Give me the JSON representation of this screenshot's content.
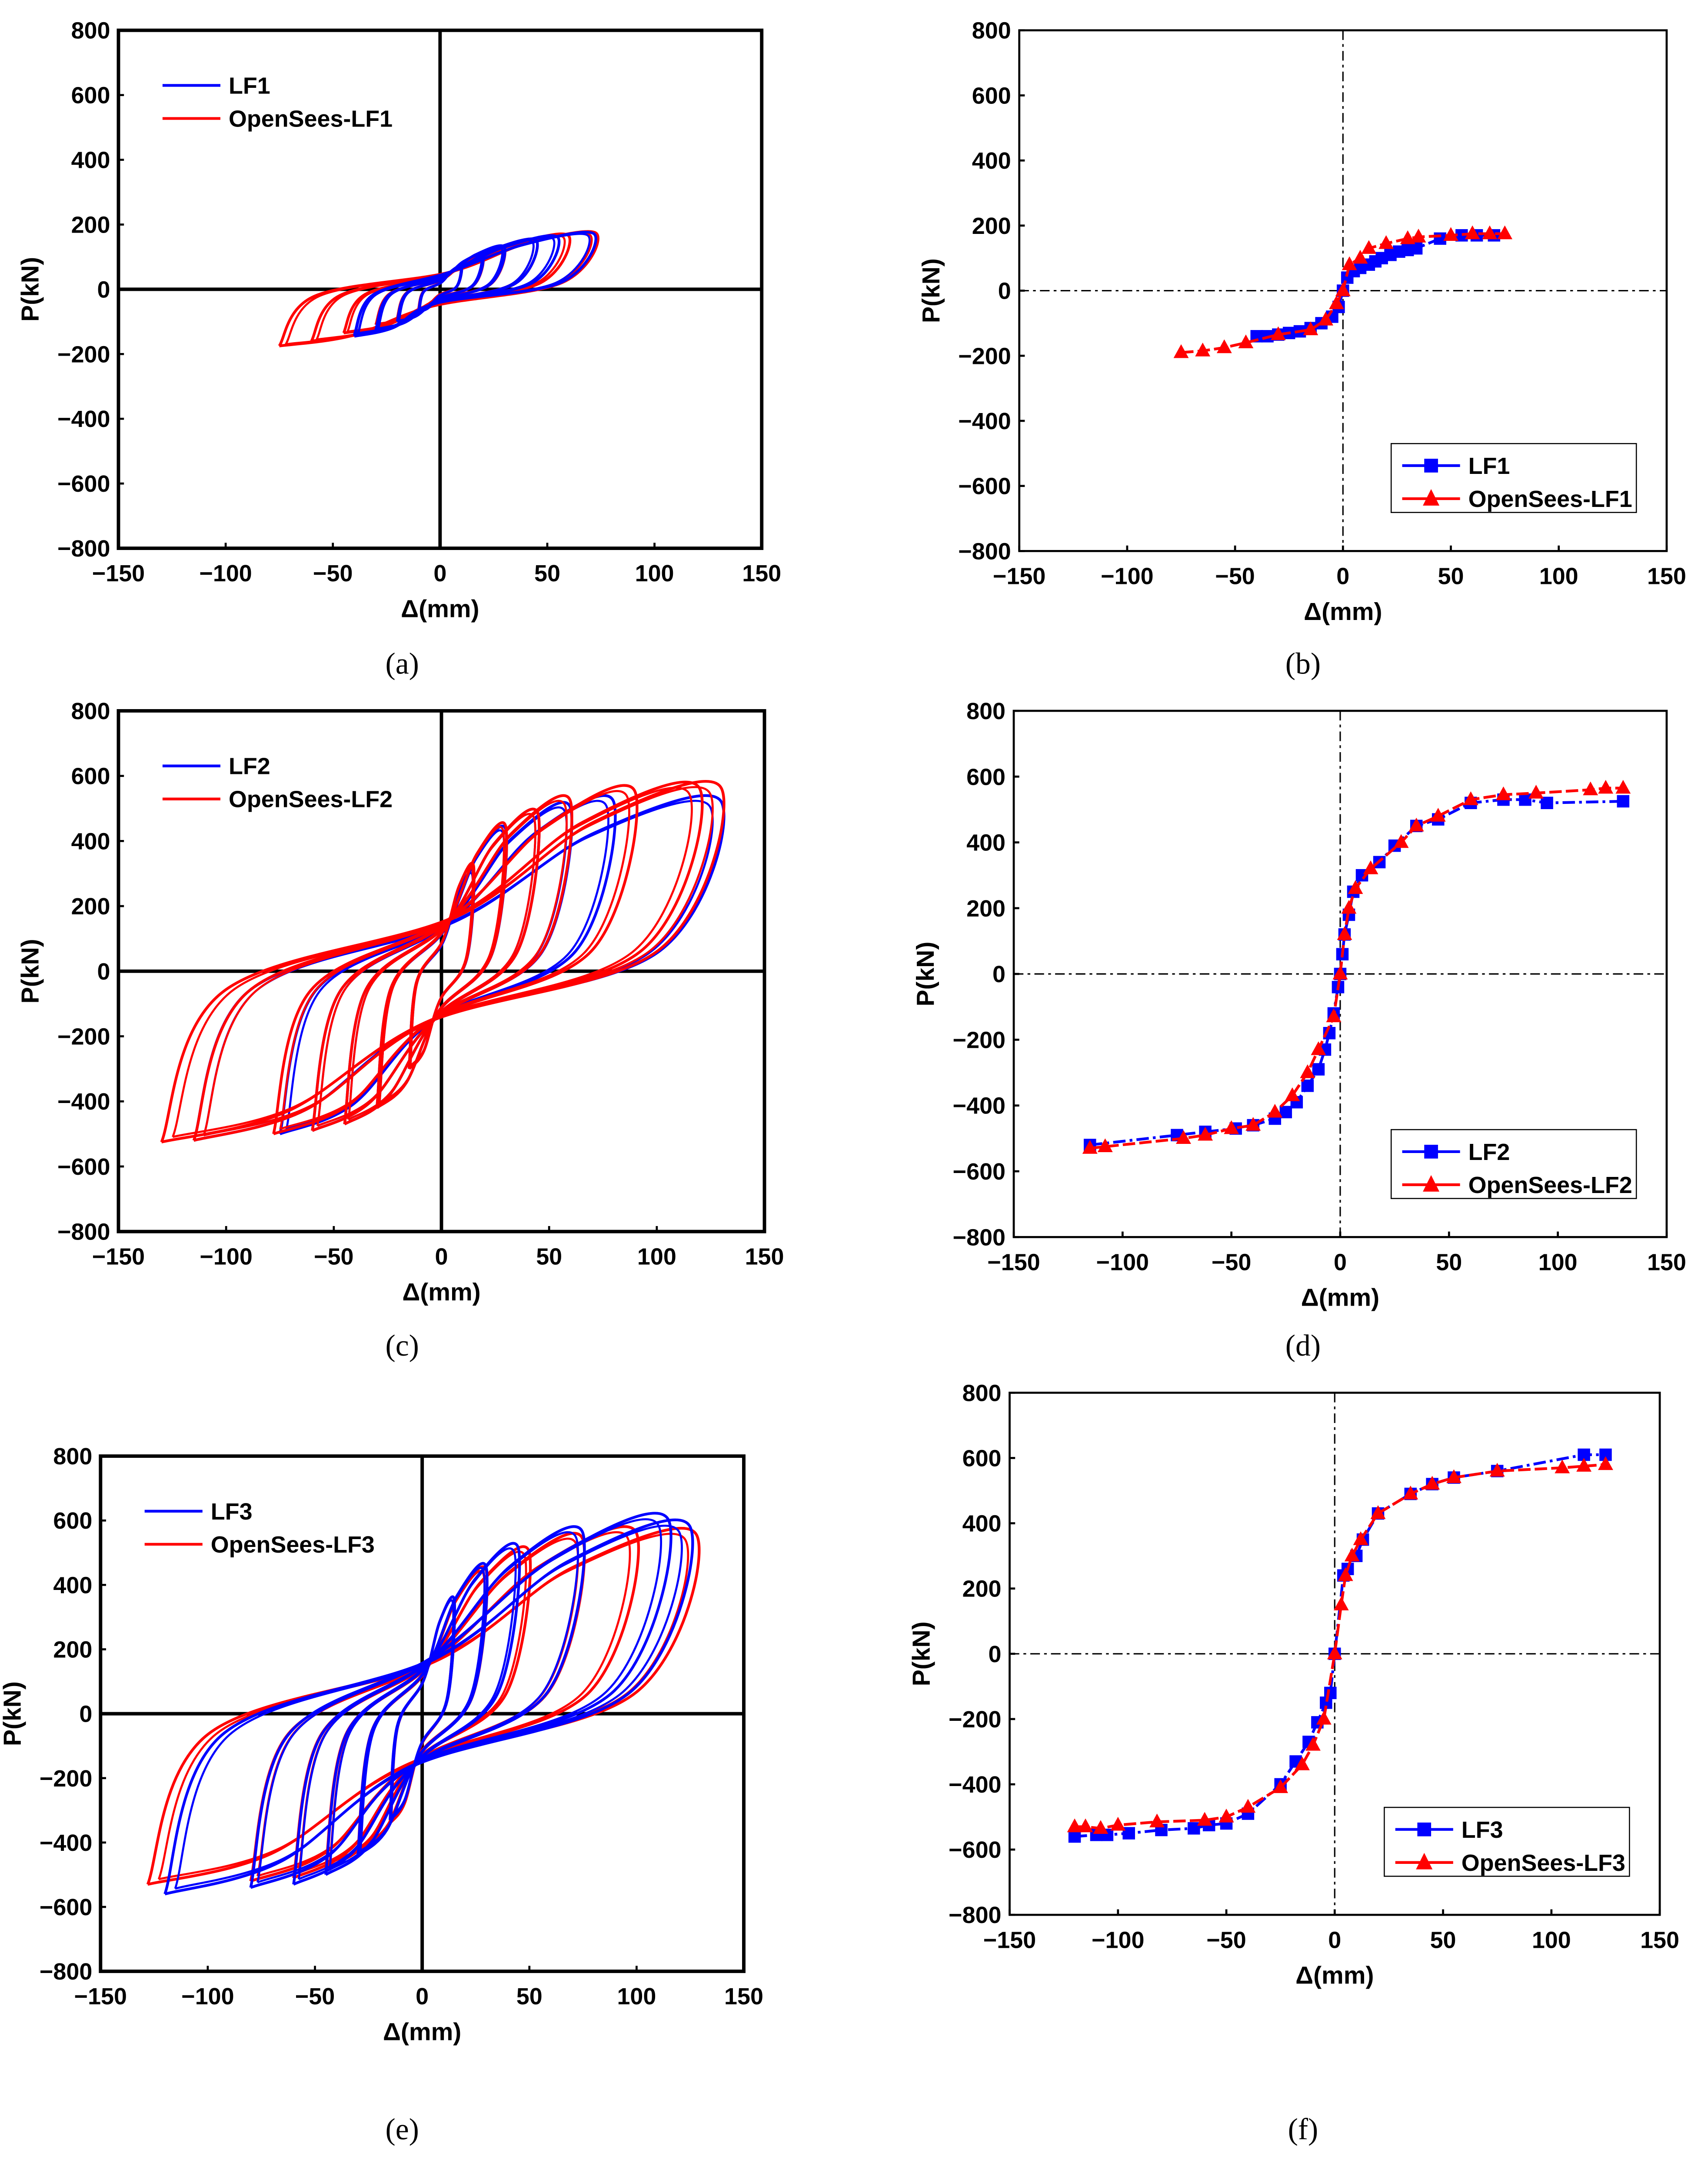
{
  "chart_data": [
    {
      "type": "line",
      "subtype": "hysteresis",
      "caption": "(a)",
      "xlabel": "Δ(mm)",
      "ylabel": "P(kN)",
      "xlim": [
        -150,
        150
      ],
      "ylim": [
        -800,
        800
      ],
      "xticks": [
        "−150",
        "−100",
        "−50",
        "0",
        "50",
        "100",
        "150"
      ],
      "yticks": [
        "800",
        "600",
        "400",
        "200",
        "0",
        "−200",
        "−400",
        "−600",
        "−800"
      ],
      "legend_position": "top-left",
      "axes_style": "solid",
      "series": [
        {
          "name": "OpenSees-LF1",
          "color": "#ff0000",
          "cycles": [
            [
              -10,
              -60,
              10,
              70
            ],
            [
              -20,
              -90,
              20,
              100
            ],
            [
              -30,
              -110,
              30,
              125
            ],
            [
              -45,
              -135,
              45,
              150
            ],
            [
              -60,
              -160,
              60,
              165
            ],
            [
              -75,
              -175,
              73,
              172
            ]
          ]
        },
        {
          "name": "LF1",
          "color": "#0000ff",
          "cycles": [
            [
              -10,
              -70,
              10,
              70
            ],
            [
              -20,
              -100,
              20,
              105
            ],
            [
              -30,
              -125,
              30,
              130
            ],
            [
              -40,
              -140,
              45,
              150
            ],
            [
              -40,
              -145,
              55,
              160
            ],
            [
              -40,
              -145,
              72,
              170
            ]
          ]
        }
      ]
    },
    {
      "type": "line",
      "subtype": "skeleton",
      "caption": "(b)",
      "xlabel": "Δ(mm)",
      "ylabel": "P(kN)",
      "xlim": [
        -150,
        150
      ],
      "ylim": [
        -800,
        800
      ],
      "xticks": [
        "−150",
        "−100",
        "−50",
        "0",
        "50",
        "100",
        "150"
      ],
      "yticks": [
        "800",
        "600",
        "400",
        "200",
        "0",
        "−200",
        "−400",
        "−600",
        "−800"
      ],
      "legend_position": "bottom-right",
      "axes_style": "dashdot",
      "series": [
        {
          "name": "LF1",
          "color": "#0000ff",
          "marker": "square",
          "points": [
            [
              -40,
              -140
            ],
            [
              -35,
              -140
            ],
            [
              -30,
              -135
            ],
            [
              -25,
              -130
            ],
            [
              -20,
              -125
            ],
            [
              -15,
              -115
            ],
            [
              -10,
              -100
            ],
            [
              -5,
              -80
            ],
            [
              -2,
              -50
            ],
            [
              0,
              0
            ],
            [
              2,
              40
            ],
            [
              5,
              60
            ],
            [
              8,
              70
            ],
            [
              12,
              80
            ],
            [
              15,
              90
            ],
            [
              18,
              100
            ],
            [
              22,
              110
            ],
            [
              26,
              120
            ],
            [
              30,
              125
            ],
            [
              34,
              130
            ],
            [
              45,
              160
            ],
            [
              55,
              170
            ],
            [
              62,
              170
            ],
            [
              70,
              170
            ]
          ]
        },
        {
          "name": "OpenSees-LF1",
          "color": "#ff0000",
          "marker": "triangle",
          "points": [
            [
              -75,
              -190
            ],
            [
              -65,
              -185
            ],
            [
              -55,
              -175
            ],
            [
              -45,
              -160
            ],
            [
              -30,
              -135
            ],
            [
              -15,
              -120
            ],
            [
              -8,
              -90
            ],
            [
              -3,
              -40
            ],
            [
              0,
              0
            ],
            [
              3,
              80
            ],
            [
              8,
              100
            ],
            [
              12,
              130
            ],
            [
              20,
              145
            ],
            [
              30,
              160
            ],
            [
              35,
              165
            ],
            [
              50,
              170
            ],
            [
              60,
              175
            ],
            [
              68,
              175
            ],
            [
              75,
              175
            ]
          ]
        }
      ]
    },
    {
      "type": "line",
      "subtype": "hysteresis",
      "caption": "(c)",
      "xlabel": "Δ(mm)",
      "ylabel": "P(kN)",
      "xlim": [
        -150,
        150
      ],
      "ylim": [
        -800,
        800
      ],
      "xticks": [
        "−150",
        "−100",
        "−50",
        "0",
        "50",
        "100",
        "150"
      ],
      "yticks": [
        "800",
        "600",
        "400",
        "200",
        "0",
        "−200",
        "−400",
        "−600",
        "−800"
      ],
      "legend_position": "top-left",
      "axes_style": "solid",
      "series": [
        {
          "name": "LF2",
          "color": "#0000ff",
          "cycles": [
            [
              -15,
              -300,
              15,
              300
            ],
            [
              -30,
              -420,
              30,
              430
            ],
            [
              -45,
              -470,
              45,
              480
            ],
            [
              -60,
              -490,
              60,
              500
            ],
            [
              -75,
              -500,
              80,
              520
            ],
            [
              -115,
              -520,
              130,
              520
            ]
          ]
        },
        {
          "name": "OpenSees-LF2",
          "color": "#ff0000",
          "cycles": [
            [
              -15,
              -300,
              15,
              320
            ],
            [
              -30,
              -420,
              30,
              440
            ],
            [
              -45,
              -470,
              45,
              480
            ],
            [
              -60,
              -490,
              60,
              520
            ],
            [
              -78,
              -500,
              90,
              550
            ],
            [
              -115,
              -520,
              120,
              560
            ],
            [
              -130,
              -525,
              130,
              562
            ]
          ]
        }
      ]
    },
    {
      "type": "line",
      "subtype": "skeleton",
      "caption": "(d)",
      "xlabel": "Δ(mm)",
      "ylabel": "P(kN)",
      "xlim": [
        -150,
        150
      ],
      "ylim": [
        -800,
        800
      ],
      "xticks": [
        "−150",
        "−100",
        "−50",
        "0",
        "50",
        "100",
        "150"
      ],
      "yticks": [
        "800",
        "600",
        "400",
        "200",
        "0",
        "−200",
        "−400",
        "−600",
        "−800"
      ],
      "legend_position": "bottom-right",
      "axes_style": "dashdot",
      "series": [
        {
          "name": "LF2",
          "color": "#0000ff",
          "marker": "square",
          "points": [
            [
              -115,
              -520
            ],
            [
              -75,
              -490
            ],
            [
              -62,
              -480
            ],
            [
              -48,
              -470
            ],
            [
              -40,
              -460
            ],
            [
              -30,
              -440
            ],
            [
              -25,
              -420
            ],
            [
              -20,
              -390
            ],
            [
              -15,
              -340
            ],
            [
              -10,
              -290
            ],
            [
              -7,
              -230
            ],
            [
              -5,
              -180
            ],
            [
              -3,
              -120
            ],
            [
              -1,
              -40
            ],
            [
              0,
              0
            ],
            [
              1,
              60
            ],
            [
              2,
              120
            ],
            [
              4,
              180
            ],
            [
              6,
              250
            ],
            [
              10,
              300
            ],
            [
              18,
              340
            ],
            [
              25,
              390
            ],
            [
              35,
              450
            ],
            [
              45,
              470
            ],
            [
              60,
              520
            ],
            [
              75,
              530
            ],
            [
              85,
              530
            ],
            [
              95,
              520
            ],
            [
              130,
              525
            ]
          ]
        },
        {
          "name": "OpenSees-LF2",
          "color": "#ff0000",
          "marker": "triangle",
          "points": [
            [
              -115,
              -530
            ],
            [
              -108,
              -525
            ],
            [
              -72,
              -500
            ],
            [
              -62,
              -490
            ],
            [
              -50,
              -470
            ],
            [
              -40,
              -460
            ],
            [
              -30,
              -420
            ],
            [
              -22,
              -370
            ],
            [
              -15,
              -300
            ],
            [
              -10,
              -230
            ],
            [
              -3,
              -130
            ],
            [
              0,
              0
            ],
            [
              2,
              120
            ],
            [
              4,
              200
            ],
            [
              7,
              260
            ],
            [
              14,
              320
            ],
            [
              28,
              400
            ],
            [
              35,
              450
            ],
            [
              45,
              480
            ],
            [
              60,
              530
            ],
            [
              75,
              545
            ],
            [
              90,
              550
            ],
            [
              115,
              560
            ],
            [
              122,
              565
            ],
            [
              130,
              565
            ]
          ]
        }
      ]
    },
    {
      "type": "line",
      "subtype": "hysteresis",
      "caption": "(e)",
      "xlabel": "Δ(mm)",
      "ylabel": "P(kN)",
      "xlim": [
        -150,
        150
      ],
      "ylim": [
        -800,
        800
      ],
      "xticks": [
        "−150",
        "−100",
        "−50",
        "0",
        "50",
        "100",
        "150"
      ],
      "yticks": [
        "800",
        "600",
        "400",
        "200",
        "0",
        "−200",
        "−400",
        "−600",
        "−800"
      ],
      "legend_position": "top-left",
      "axes_style": "solid",
      "series": [
        {
          "name": "OpenSees-LF3",
          "color": "#ff0000",
          "cycles": [
            [
              -15,
              -340,
              15,
              350
            ],
            [
              -30,
              -430,
              30,
              440
            ],
            [
              -45,
              -480,
              50,
              500
            ],
            [
              -60,
              -510,
              75,
              540
            ],
            [
              -80,
              -520,
              100,
              560
            ],
            [
              -128,
              -530,
              128,
              555
            ]
          ]
        },
        {
          "name": "LF3",
          "color": "#0000ff",
          "cycles": [
            [
              -15,
              -330,
              15,
              350
            ],
            [
              -30,
              -440,
              30,
              450
            ],
            [
              -45,
              -500,
              45,
              510
            ],
            [
              -60,
              -530,
              75,
              560
            ],
            [
              -80,
              -540,
              115,
              600
            ],
            [
              -120,
              -560,
              125,
              580
            ]
          ]
        }
      ]
    },
    {
      "type": "line",
      "subtype": "skeleton",
      "caption": "(f)",
      "xlabel": "Δ(mm)",
      "ylabel": "P(kN)",
      "xlim": [
        -150,
        150
      ],
      "ylim": [
        -800,
        800
      ],
      "xticks": [
        "−150",
        "−100",
        "−50",
        "0",
        "50",
        "100",
        "150"
      ],
      "yticks": [
        "800",
        "600",
        "400",
        "200",
        "0",
        "−200",
        "−400",
        "−600",
        "−800"
      ],
      "legend_position": "bottom-right",
      "axes_style": "dashdot",
      "series": [
        {
          "name": "LF3",
          "color": "#0000ff",
          "marker": "square",
          "points": [
            [
              -120,
              -560
            ],
            [
              -110,
              -555
            ],
            [
              -105,
              -555
            ],
            [
              -95,
              -550
            ],
            [
              -80,
              -540
            ],
            [
              -65,
              -535
            ],
            [
              -58,
              -525
            ],
            [
              -50,
              -520
            ],
            [
              -40,
              -490
            ],
            [
              -25,
              -400
            ],
            [
              -18,
              -330
            ],
            [
              -12,
              -270
            ],
            [
              -8,
              -210
            ],
            [
              -4,
              -150
            ],
            [
              -2,
              -120
            ],
            [
              0,
              0
            ],
            [
              4,
              240
            ],
            [
              6,
              260
            ],
            [
              10,
              300
            ],
            [
              13,
              350
            ],
            [
              20,
              430
            ],
            [
              35,
              490
            ],
            [
              45,
              520
            ],
            [
              55,
              540
            ],
            [
              75,
              560
            ],
            [
              115,
              610
            ],
            [
              125,
              610
            ]
          ]
        },
        {
          "name": "OpenSees-LF3",
          "color": "#ff0000",
          "marker": "triangle",
          "points": [
            [
              -120,
              -530
            ],
            [
              -115,
              -530
            ],
            [
              -108,
              -535
            ],
            [
              -100,
              -525
            ],
            [
              -82,
              -515
            ],
            [
              -60,
              -510
            ],
            [
              -50,
              -500
            ],
            [
              -40,
              -470
            ],
            [
              -25,
              -410
            ],
            [
              -15,
              -340
            ],
            [
              -10,
              -280
            ],
            [
              -5,
              -200
            ],
            [
              0,
              0
            ],
            [
              3,
              150
            ],
            [
              5,
              240
            ],
            [
              8,
              300
            ],
            [
              12,
              350
            ],
            [
              20,
              430
            ],
            [
              35,
              490
            ],
            [
              45,
              520
            ],
            [
              55,
              540
            ],
            [
              75,
              560
            ],
            [
              105,
              570
            ],
            [
              115,
              575
            ],
            [
              125,
              580
            ]
          ]
        }
      ]
    }
  ]
}
